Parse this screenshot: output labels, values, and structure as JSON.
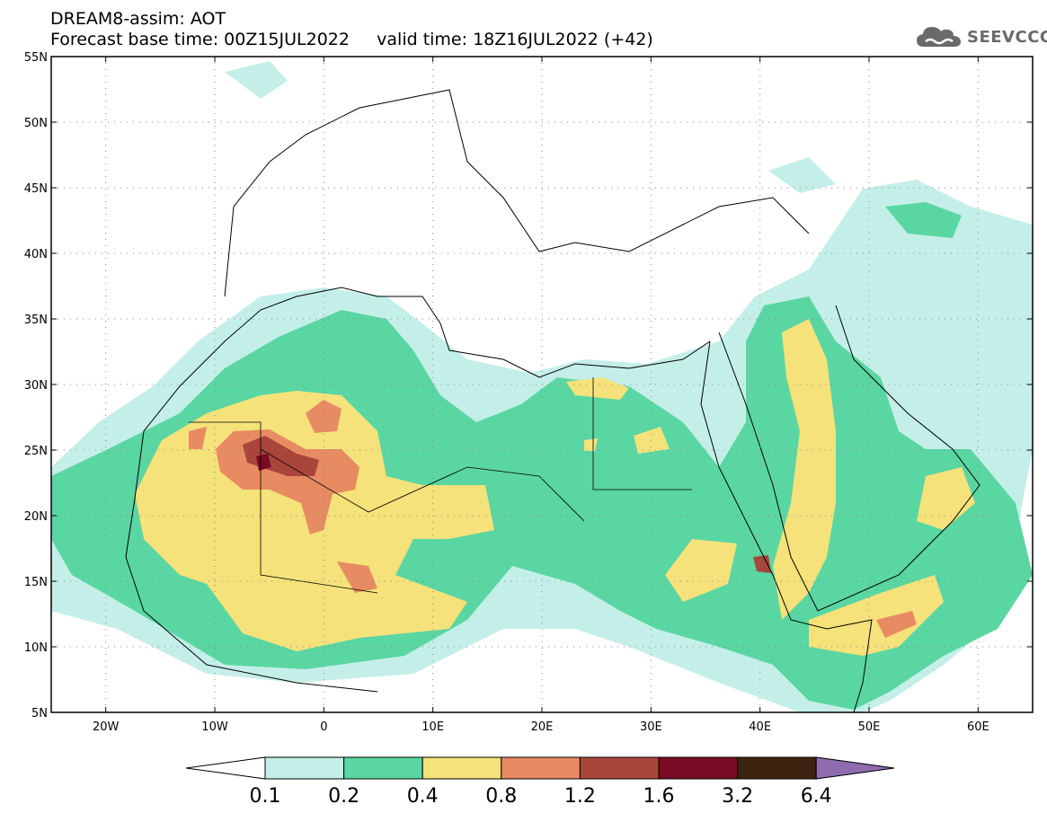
{
  "header": {
    "line1": "DREAM8-assim: AOT",
    "line2": "Forecast base time: 00Z15JUL2022     valid time: 18Z16JUL2022 (+42)"
  },
  "logo": {
    "text": "SEEVCCC",
    "icon": "cloud-logo-icon"
  },
  "map": {
    "lon_range": [
      -25,
      65
    ],
    "lat_range": [
      5,
      55
    ],
    "lon_ticks": [
      {
        "value": -20,
        "label": "20W"
      },
      {
        "value": -10,
        "label": "10W"
      },
      {
        "value": 0,
        "label": "0"
      },
      {
        "value": 10,
        "label": "10E"
      },
      {
        "value": 20,
        "label": "20E"
      },
      {
        "value": 30,
        "label": "30E"
      },
      {
        "value": 40,
        "label": "40E"
      },
      {
        "value": 50,
        "label": "50E"
      },
      {
        "value": 60,
        "label": "60E"
      }
    ],
    "lat_ticks": [
      {
        "value": 55,
        "label": "55N"
      },
      {
        "value": 50,
        "label": "50N"
      },
      {
        "value": 45,
        "label": "45N"
      },
      {
        "value": 40,
        "label": "40N"
      },
      {
        "value": 35,
        "label": "35N"
      },
      {
        "value": 30,
        "label": "30N"
      },
      {
        "value": 25,
        "label": "25N"
      },
      {
        "value": 20,
        "label": "20N"
      },
      {
        "value": 15,
        "label": "15N"
      },
      {
        "value": 10,
        "label": "10N"
      },
      {
        "value": 5,
        "label": "5N"
      }
    ],
    "grid": "dotted"
  },
  "colorbar": {
    "labels": [
      "0.1",
      "0.2",
      "0.4",
      "0.8",
      "1.2",
      "1.6",
      "3.2",
      "6.4"
    ],
    "colors": [
      "#ffffff",
      "#c4efe8",
      "#5ad6a2",
      "#f5e27a",
      "#e68b62",
      "#a9453a",
      "#7a0c25",
      "#3e2410",
      "#8e6cae"
    ]
  }
}
